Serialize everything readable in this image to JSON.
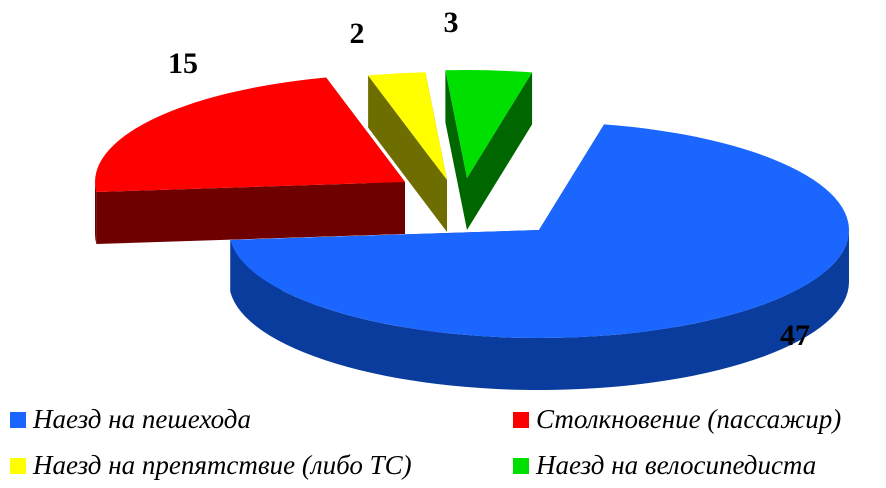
{
  "chart_data": {
    "type": "pie",
    "style": "3d-exploded",
    "categories": [
      "Наезд на пешехода",
      "Столкновение (пассажир)",
      "Наезд на препятствие (либо ТС)",
      "Наезд на велосипедиста"
    ],
    "values": [
      47,
      15,
      2,
      3
    ],
    "data_labels": [
      "47",
      "15",
      "2",
      "3"
    ],
    "colors": [
      "#1a66ff",
      "#ff0000",
      "#ffff00",
      "#00e000"
    ],
    "side_colors": [
      "#0a3c9e",
      "#6e0000",
      "#6e6e00",
      "#006600"
    ],
    "legend_placement": "bottom",
    "title": ""
  }
}
